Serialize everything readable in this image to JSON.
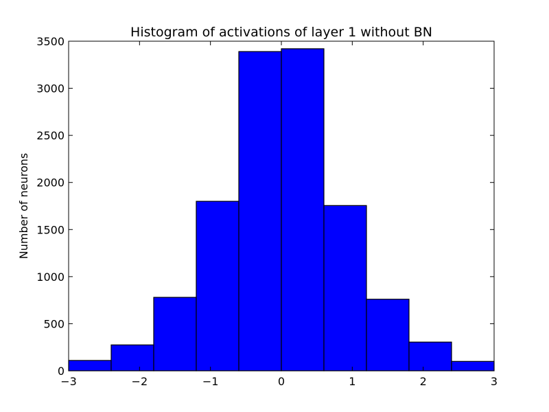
{
  "chart_data": {
    "type": "bar",
    "title": "Histogram of activations of layer 1  without BN",
    "xlabel": "",
    "ylabel": "Number of neurons",
    "xlim": [
      -3,
      3
    ],
    "ylim": [
      0,
      3500
    ],
    "bar_color": "#0000ff",
    "edge_color": "#000000",
    "grid": false,
    "bins": [
      {
        "x0": -3.0,
        "x1": -2.4,
        "value": 110
      },
      {
        "x0": -2.4,
        "x1": -1.8,
        "value": 275
      },
      {
        "x0": -1.8,
        "x1": -1.2,
        "value": 780
      },
      {
        "x0": -1.2,
        "x1": -0.6,
        "value": 1800
      },
      {
        "x0": -0.6,
        "x1": 0.0,
        "value": 3390
      },
      {
        "x0": 0.0,
        "x1": 0.6,
        "value": 3420
      },
      {
        "x0": 0.6,
        "x1": 1.2,
        "value": 1755
      },
      {
        "x0": 1.2,
        "x1": 1.8,
        "value": 760
      },
      {
        "x0": 1.8,
        "x1": 2.4,
        "value": 305
      },
      {
        "x0": 2.4,
        "x1": 3.0,
        "value": 100
      }
    ],
    "x_ticks": [
      {
        "value": -3,
        "label": "−3"
      },
      {
        "value": -2,
        "label": "−2"
      },
      {
        "value": -1,
        "label": "−1"
      },
      {
        "value": 0,
        "label": "0"
      },
      {
        "value": 1,
        "label": "1"
      },
      {
        "value": 2,
        "label": "2"
      },
      {
        "value": 3,
        "label": "3"
      }
    ],
    "y_ticks": [
      {
        "value": 0,
        "label": "0"
      },
      {
        "value": 500,
        "label": "500"
      },
      {
        "value": 1000,
        "label": "1000"
      },
      {
        "value": 1500,
        "label": "1500"
      },
      {
        "value": 2000,
        "label": "2000"
      },
      {
        "value": 2500,
        "label": "2500"
      },
      {
        "value": 3000,
        "label": "3000"
      },
      {
        "value": 3500,
        "label": "3500"
      }
    ]
  }
}
